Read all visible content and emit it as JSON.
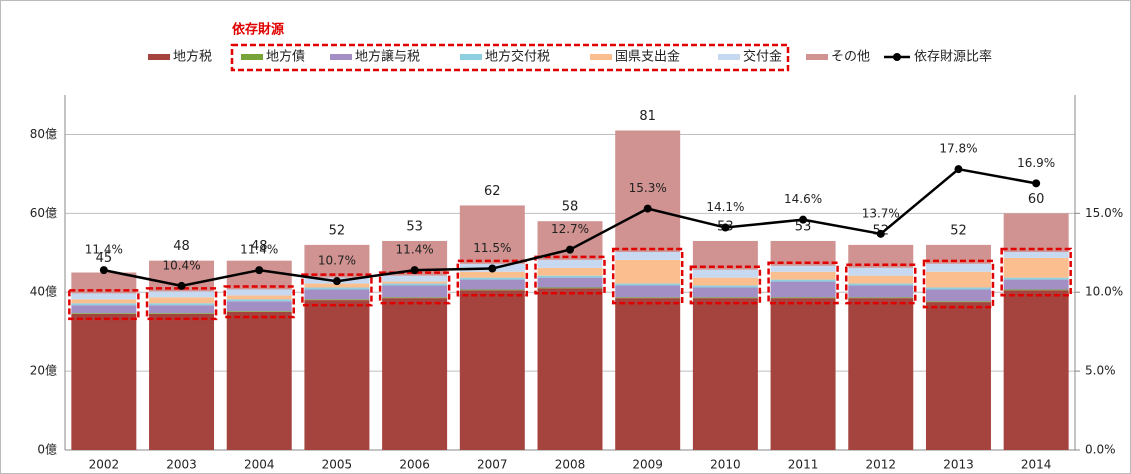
{
  "chart_data": {
    "type": "bar",
    "annotation": "依存財源",
    "categories": [
      "2002",
      "2003",
      "2004",
      "2005",
      "2006",
      "2007",
      "2008",
      "2009",
      "2010",
      "2011",
      "2012",
      "2013",
      "2014"
    ],
    "series": [
      {
        "name": "地方税",
        "color": "#a5443f",
        "values": [
          34.5,
          34.5,
          35,
          38,
          38.5,
          40.5,
          41,
          38.5,
          38.5,
          38.5,
          38.5,
          37.5,
          40.5
        ]
      },
      {
        "name": "地方債",
        "color": "#77a33a",
        "values": [
          0.2,
          0.2,
          0.2,
          0.2,
          0.2,
          0.2,
          0.2,
          0.2,
          0.2,
          0.2,
          0.2,
          0.2,
          0.2
        ]
      },
      {
        "name": "地方譲与税",
        "color": "#a48fc4",
        "values": [
          2,
          2,
          2.5,
          2.5,
          3,
          2.5,
          2.5,
          3,
          2.5,
          4,
          3,
          3,
          2.5
        ]
      },
      {
        "name": "地方交付税",
        "color": "#8ecfe0",
        "values": [
          0.5,
          0.5,
          0.5,
          0.5,
          0.5,
          0.5,
          0.5,
          0.5,
          0.5,
          0.5,
          0.5,
          0.5,
          0.5
        ]
      },
      {
        "name": "国県支出金",
        "color": "#fbbf8f",
        "values": [
          1,
          1.5,
          1,
          1,
          0.5,
          1.5,
          2,
          6,
          2,
          2,
          2,
          4,
          5
        ]
      },
      {
        "name": "交付金",
        "color": "#c6d9f1",
        "values": [
          1.5,
          1.5,
          1.5,
          1.5,
          1.5,
          2,
          2,
          2,
          2,
          1.5,
          2,
          2,
          1.5
        ]
      },
      {
        "name": "その他",
        "color": "#d09391",
        "values": [
          5.3,
          7.8,
          7.3,
          8.3,
          8.8,
          14.8,
          9.8,
          30.8,
          7.3,
          6.3,
          5.8,
          4.8,
          9.8
        ]
      },
      {
        "name": "依存財源比率",
        "color": "#000000",
        "type": "line",
        "axis": "y2",
        "values": [
          11.4,
          10.4,
          11.4,
          10.7,
          11.4,
          11.5,
          12.7,
          15.3,
          14.1,
          14.6,
          13.7,
          17.8,
          16.9
        ],
        "value_labels": [
          "11.4%",
          "10.4%",
          "11.4%",
          "10.7%",
          "11.4%",
          "11.5%",
          "12.7%",
          "15.3%",
          "14.1%",
          "14.6%",
          "13.7%",
          "17.8%",
          "16.9%"
        ]
      }
    ],
    "totals": [
      45,
      48,
      48,
      52,
      53,
      62,
      58,
      81,
      53,
      53,
      52,
      52,
      60
    ],
    "ylim": [
      0,
      90
    ],
    "yticks": [
      {
        "value": 0,
        "label": "0億"
      },
      {
        "value": 20,
        "label": "20億"
      },
      {
        "value": 40,
        "label": "40億"
      },
      {
        "value": 60,
        "label": "60億"
      },
      {
        "value": 80,
        "label": "80億"
      }
    ],
    "y2lim": [
      0,
      22.5
    ],
    "y2ticks": [
      {
        "value": 0,
        "label": "0.0%"
      },
      {
        "value": 5,
        "label": "5.0%"
      },
      {
        "value": 10,
        "label": "10.0%"
      },
      {
        "value": 15,
        "label": "15.0%"
      }
    ],
    "grid": true,
    "legend": "top"
  }
}
